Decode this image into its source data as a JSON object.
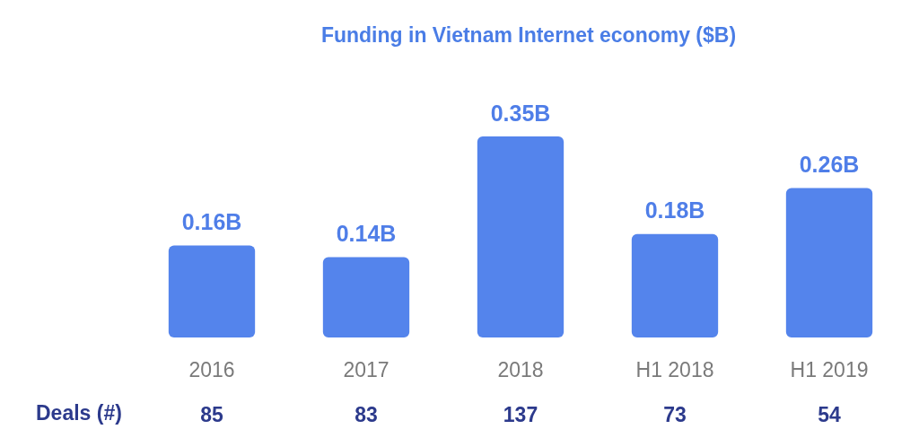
{
  "chart_data": {
    "type": "bar",
    "title": "Funding in Vietnam Internet economy ($B)",
    "categories": [
      "2016",
      "2017",
      "2018",
      "H1 2018",
      "H1 2019"
    ],
    "values": [
      0.16,
      0.14,
      0.35,
      0.18,
      0.26
    ],
    "value_labels": [
      "0.16B",
      "0.14B",
      "0.35B",
      "0.18B",
      "0.26B"
    ],
    "color": "#5484ec",
    "annotations": [
      "Deals (#)",
      "85",
      "83",
      "137",
      "73",
      "54"
    ]
  }
}
